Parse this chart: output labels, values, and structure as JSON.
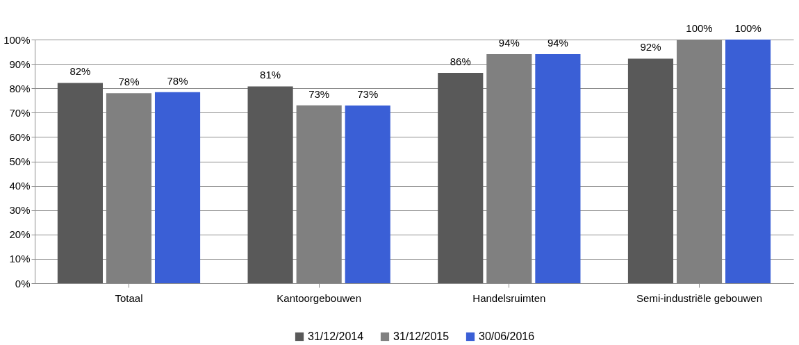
{
  "chart_data": {
    "type": "bar",
    "categories": [
      "Totaal",
      "Kantoorgebouwen",
      "Handelsruimten",
      "Semi-industriële gebouwen"
    ],
    "series": [
      {
        "name": "31/12/2014",
        "color": "#595959",
        "values": [
          82.2,
          80.8,
          86.3,
          92.2
        ],
        "value_labels": [
          "82%",
          "81%",
          "86%",
          "92%"
        ]
      },
      {
        "name": "31/12/2015",
        "color": "#808080",
        "values": [
          78,
          73,
          94,
          100
        ],
        "value_labels": [
          "78%",
          "73%",
          "94%",
          "100%"
        ]
      },
      {
        "name": "30/06/2016",
        "color": "#3a5fd6",
        "values": [
          78.4,
          72.9,
          94,
          100
        ],
        "value_labels": [
          "78%",
          "73%",
          "94%",
          "100%"
        ]
      }
    ],
    "ylim": [
      0,
      100
    ],
    "yticks": [
      {
        "value": 0,
        "label": "0%"
      },
      {
        "value": 10,
        "label": "10%"
      },
      {
        "value": 20,
        "label": "20%"
      },
      {
        "value": 30,
        "label": "30%"
      },
      {
        "value": 40,
        "label": "40%"
      },
      {
        "value": 50,
        "label": "50%"
      },
      {
        "value": 60,
        "label": "60%"
      },
      {
        "value": 70,
        "label": "70%"
      },
      {
        "value": 80,
        "label": "80%"
      },
      {
        "value": 90,
        "label": "90%"
      },
      {
        "value": 100,
        "label": "100%"
      }
    ],
    "grid": "y",
    "legend": "bottom"
  }
}
